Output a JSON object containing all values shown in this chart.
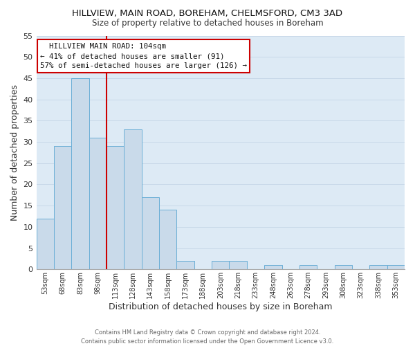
{
  "title": "HILLVIEW, MAIN ROAD, BOREHAM, CHELMSFORD, CM3 3AD",
  "subtitle": "Size of property relative to detached houses in Boreham",
  "xlabel": "Distribution of detached houses by size in Boreham",
  "ylabel": "Number of detached properties",
  "footer_line1": "Contains HM Land Registry data © Crown copyright and database right 2024.",
  "footer_line2": "Contains public sector information licensed under the Open Government Licence v3.0.",
  "bin_labels": [
    "53sqm",
    "68sqm",
    "83sqm",
    "98sqm",
    "113sqm",
    "128sqm",
    "143sqm",
    "158sqm",
    "173sqm",
    "188sqm",
    "203sqm",
    "218sqm",
    "233sqm",
    "248sqm",
    "263sqm",
    "278sqm",
    "293sqm",
    "308sqm",
    "323sqm",
    "338sqm",
    "353sqm"
  ],
  "bar_values": [
    12,
    29,
    45,
    31,
    29,
    33,
    17,
    14,
    2,
    0,
    2,
    2,
    0,
    1,
    0,
    1,
    0,
    1,
    0,
    1,
    1
  ],
  "bar_color": "#c9daea",
  "bar_edge_color": "#6aaed6",
  "ylim": [
    0,
    55
  ],
  "yticks": [
    0,
    5,
    10,
    15,
    20,
    25,
    30,
    35,
    40,
    45,
    50,
    55
  ],
  "vline_x": 4.0,
  "vline_color": "#cc0000",
  "annotation_title": "HILLVIEW MAIN ROAD: 104sqm",
  "annotation_line1": "← 41% of detached houses are smaller (91)",
  "annotation_line2": "57% of semi-detached houses are larger (126) →",
  "annotation_box_color": "#ffffff",
  "annotation_box_edge": "#cc0000",
  "grid_color": "#c8d8e8",
  "background_color": "#ffffff",
  "plot_bg_color": "#ddeaf5"
}
